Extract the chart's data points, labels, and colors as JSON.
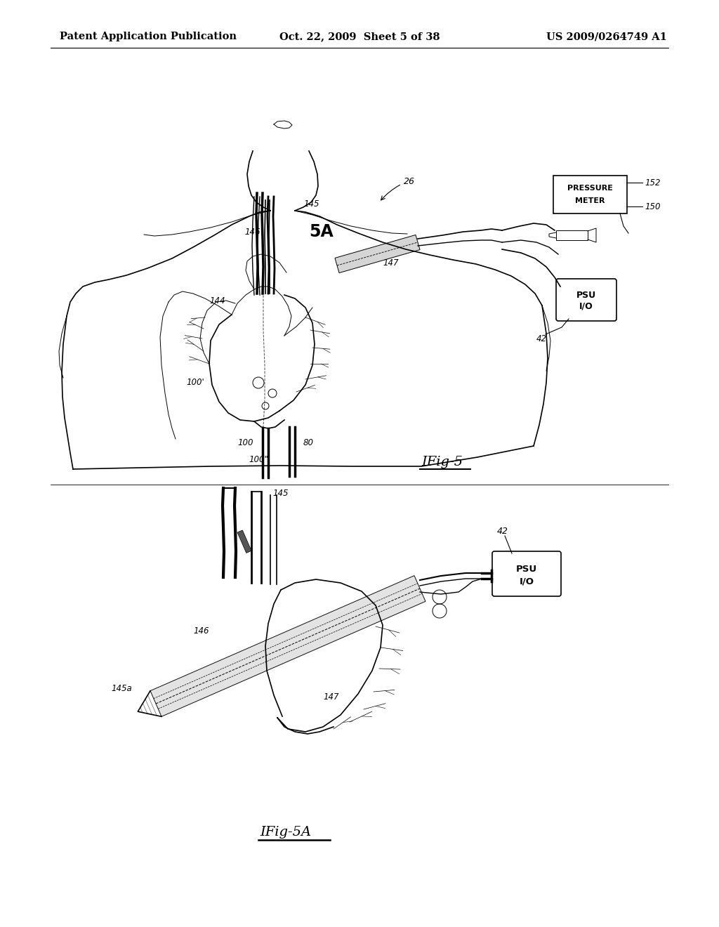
{
  "background_color": "#ffffff",
  "header_left": "Patent Application Publication",
  "header_center": "Oct. 22, 2009  Sheet 5 of 38",
  "header_right": "US 2009/0264749 A1",
  "header_fontsize": 10.5,
  "line_color": "#000000",
  "fig5_label": "IFig-5",
  "fig5A_label": "IFig-5A",
  "fig5_sublabel": "5A"
}
